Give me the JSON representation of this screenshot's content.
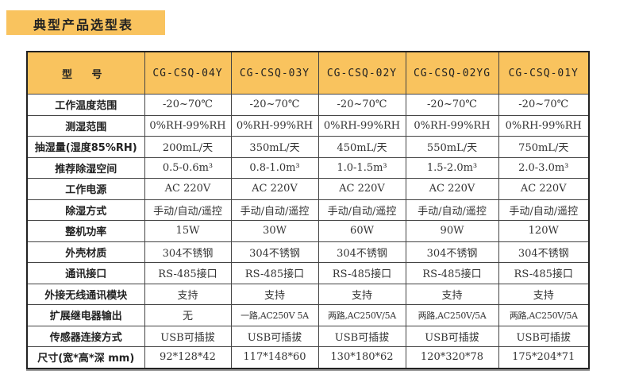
{
  "title": "典型产品选型表",
  "header": {
    "label": "型 号",
    "models": [
      "CG-CSQ-04Y",
      "CG-CSQ-03Y",
      "CG-CSQ-02Y",
      "CG-CSQ-02YG",
      "CG-CSQ-01Y"
    ]
  },
  "rows": [
    {
      "label": "工作温度范围",
      "values": [
        "-20~70℃",
        "-20~70℃",
        "-20~70℃",
        "-20~70℃",
        "-20~70℃"
      ]
    },
    {
      "label": "测湿范围",
      "values": [
        "0%RH-99%RH",
        "0%RH-99%RH",
        "0%RH-99%RH",
        "0%RH-99%RH",
        "0%RH-99%RH"
      ]
    },
    {
      "label": "抽湿量(湿度85%RH)",
      "values": [
        "200mL/天",
        "350mL/天",
        "450mL/天",
        "550mL/天",
        "750mL/天"
      ]
    },
    {
      "label": "推荐除湿空间",
      "values": [
        "0.5-0.6m³",
        "0.8-1.0m³",
        "1.0-1.5m³",
        "1.5-2.0m³",
        "2.0-3.0m³"
      ]
    },
    {
      "label": "工作电源",
      "values": [
        "AC 220V",
        "AC 220V",
        "AC 220V",
        "AC 220V",
        "AC 220V"
      ]
    },
    {
      "label": "除湿方式",
      "values": [
        "手动/自动/遥控",
        "手动/自动/遥控",
        "手动/自动/遥控",
        "手动/自动/遥控",
        "手动/自动/遥控"
      ]
    },
    {
      "label": "整机功率",
      "values": [
        "15W",
        "30W",
        "60W",
        "90W",
        "120W"
      ]
    },
    {
      "label": "外壳材质",
      "values": [
        "304不锈钢",
        "304不锈钢",
        "304不锈钢",
        "304不锈钢",
        "304不锈钢"
      ]
    },
    {
      "label": "通讯接口",
      "values": [
        "RS-485接口",
        "RS-485接口",
        "RS-485接口",
        "RS-485接口",
        "RS-485接口"
      ]
    },
    {
      "label": "外接无线通讯模块",
      "values": [
        "支持",
        "支持",
        "支持",
        "支持",
        "支持"
      ]
    },
    {
      "label": "扩展继电器输出",
      "values": [
        "无",
        "一路,AC250V 5A",
        "两路,AC250V/5A",
        "两路,AC250V/5A",
        "两路,AC250V/5A"
      ]
    },
    {
      "label": "传感器连接方式",
      "values": [
        "USB可插拔",
        "USB可插拔",
        "USB可插拔",
        "USB可插拔",
        "USB可插拔"
      ]
    },
    {
      "label": "尺寸(宽*高*深 mm)",
      "values": [
        "92*128*42",
        "117*148*60",
        "130*180*62",
        "120*320*78",
        "175*204*71"
      ]
    }
  ],
  "colors": {
    "accent": "#F9C35E"
  }
}
